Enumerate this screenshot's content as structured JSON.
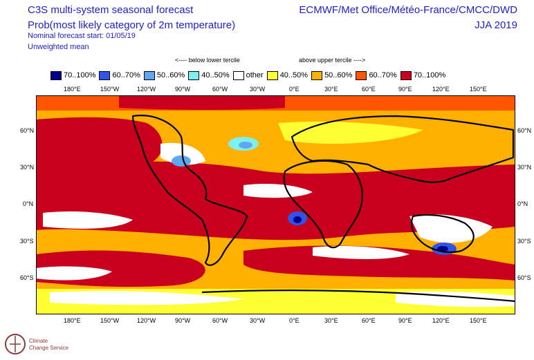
{
  "header": {
    "title_line1": "C3S multi-system seasonal forecast",
    "title_line2": "Prob(most likely category of 2m temperature)",
    "start_line": "Nominal forecast start: 01/05/19",
    "mean_line": "Unweighted mean",
    "centres": "ECMWF/Met Office/Météo-France/CMCC/DWD",
    "season": "JJA 2019"
  },
  "tercile": {
    "below": "<---- below lower tercile",
    "above": "above upper tercile ---->"
  },
  "legend": [
    {
      "label": "70..100%",
      "color": "#00008c"
    },
    {
      "label": "60..70%",
      "color": "#2f54e8"
    },
    {
      "label": "50..60%",
      "color": "#5fa8f0"
    },
    {
      "label": "40..50%",
      "color": "#7ff0f0"
    },
    {
      "label": "other",
      "color": "#ffffff"
    },
    {
      "label": "40..50%",
      "color": "#ffff33"
    },
    {
      "label": "50..60%",
      "color": "#ffb000"
    },
    {
      "label": "60..70%",
      "color": "#ff5500"
    },
    {
      "label": "70..100%",
      "color": "#c8001e"
    }
  ],
  "axes": {
    "lon_labels": [
      "180°E",
      "150°W",
      "120°W",
      "90°W",
      "60°W",
      "30°W",
      "0°E",
      "30°E",
      "60°E",
      "90°E",
      "120°E",
      "150°E"
    ],
    "lat_labels": [
      "60°N",
      "30°N",
      "0°N",
      "30°S",
      "60°S"
    ]
  },
  "logo": {
    "line1": "Climate",
    "line2": "Change Service",
    "icon": "copernicus-logo-icon"
  }
}
